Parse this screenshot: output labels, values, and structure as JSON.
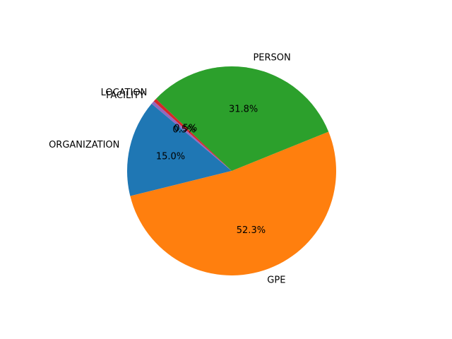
{
  "chart_data": {
    "type": "pie",
    "title": "",
    "categories": [
      "ORGANIZATION",
      "GPE",
      "PERSON",
      "LOCATION",
      "FACILITY"
    ],
    "values": [
      15.0,
      52.3,
      31.8,
      0.5,
      0.5
    ],
    "value_labels": [
      "15.0%",
      "52.3%",
      "31.8%",
      "0.5%",
      "0.5%"
    ],
    "colors": [
      "#1f77b4",
      "#ff7f0e",
      "#2ca02c",
      "#d62728",
      "#9467bd"
    ],
    "start_angle_deg": 140,
    "direction": "counterclockwise",
    "legend": "none"
  }
}
